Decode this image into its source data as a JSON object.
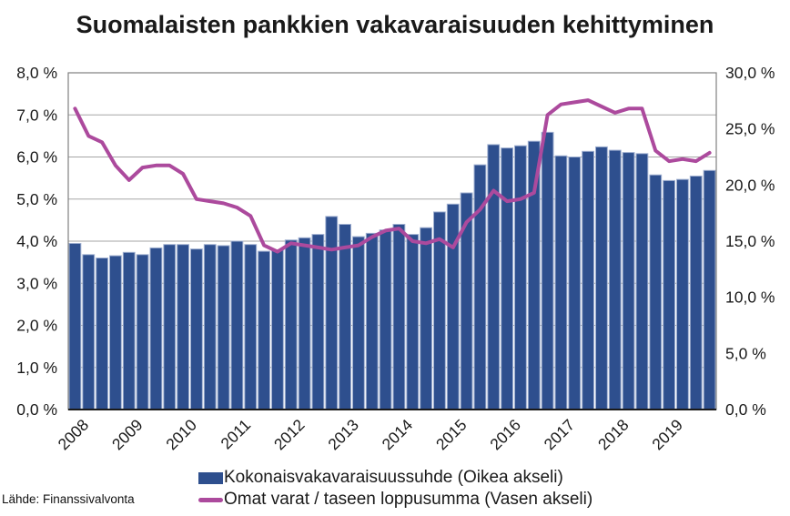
{
  "title": "Suomalaisten pankkien vakavaraisuuden kehittyminen",
  "source_note": "Lähde: Finanssivalvonta",
  "legend": {
    "bar_label": "Kokonaisvakavaraisuussuhde (Oikea akseli)",
    "line_label": "Omat varat / taseen loppusumma (Vasen akseli)"
  },
  "colors": {
    "bar_fill": "#2E4F8E",
    "bar_border": "#9FAFD0",
    "line": "#AC4A9D",
    "grid": "#A6A6A6",
    "frame": "#808080",
    "axis_line": "#1A1A1A",
    "text": "#1A1A1A"
  },
  "chart_data": {
    "type": "bar",
    "subtype": "combo: quarterly bars with overlaid line, dual axes",
    "title": "Suomalaisten pankkien vakavaraisuuden kehittyminen",
    "x_tick_labels": [
      "2008",
      "2009",
      "2010",
      "2011",
      "2012",
      "2013",
      "2014",
      "2015",
      "2016",
      "2017",
      "2018",
      "2019"
    ],
    "bars_per_year": 4,
    "grid": "horizontal",
    "legend_position": "bottom",
    "left_axis": {
      "min": 0,
      "max": 8,
      "step": 1,
      "tick_labels": [
        "0,0 %",
        "1,0 %",
        "2,0 %",
        "3,0 %",
        "4,0 %",
        "5,0 %",
        "6,0 %",
        "7,0 %",
        "8,0 %"
      ]
    },
    "right_axis": {
      "min": 0,
      "max": 30,
      "step": 5,
      "tick_labels": [
        "0,0 %",
        "5,0 %",
        "10,0 %",
        "15,0 %",
        "20,0 %",
        "25,0 %",
        "30,0 %"
      ]
    },
    "series": [
      {
        "name": "Kokonaisvakavaraisuussuhde (Oikea akseli)",
        "chart": "bar",
        "axis": "right",
        "values": [
          14.8,
          13.8,
          13.5,
          13.7,
          14.0,
          13.8,
          14.4,
          14.7,
          14.7,
          14.3,
          14.7,
          14.6,
          15.0,
          14.7,
          14.1,
          14.2,
          15.1,
          15.3,
          15.6,
          17.2,
          16.5,
          15.4,
          15.7,
          16.0,
          16.5,
          15.6,
          16.2,
          17.6,
          18.3,
          19.3,
          21.8,
          23.6,
          23.3,
          23.5,
          23.9,
          24.7,
          22.6,
          22.5,
          23.0,
          23.4,
          23.1,
          22.9,
          22.8,
          20.9,
          20.4,
          20.5,
          20.8,
          21.3
        ]
      },
      {
        "name": "Omat varat / taseen loppusumma (Vasen akseli)",
        "chart": "line",
        "axis": "left",
        "values": [
          7.15,
          6.5,
          6.35,
          5.8,
          5.45,
          5.75,
          5.8,
          5.8,
          5.6,
          5.0,
          4.95,
          4.9,
          4.8,
          4.6,
          3.9,
          3.75,
          3.95,
          3.9,
          3.85,
          3.8,
          3.85,
          3.9,
          4.1,
          4.25,
          4.3,
          4.0,
          3.95,
          4.05,
          3.85,
          4.45,
          4.75,
          5.2,
          4.95,
          5.0,
          5.15,
          7.0,
          7.25,
          7.3,
          7.35,
          7.2,
          7.05,
          7.15,
          7.15,
          6.15,
          5.9,
          5.95,
          5.9,
          6.1
        ]
      }
    ]
  }
}
